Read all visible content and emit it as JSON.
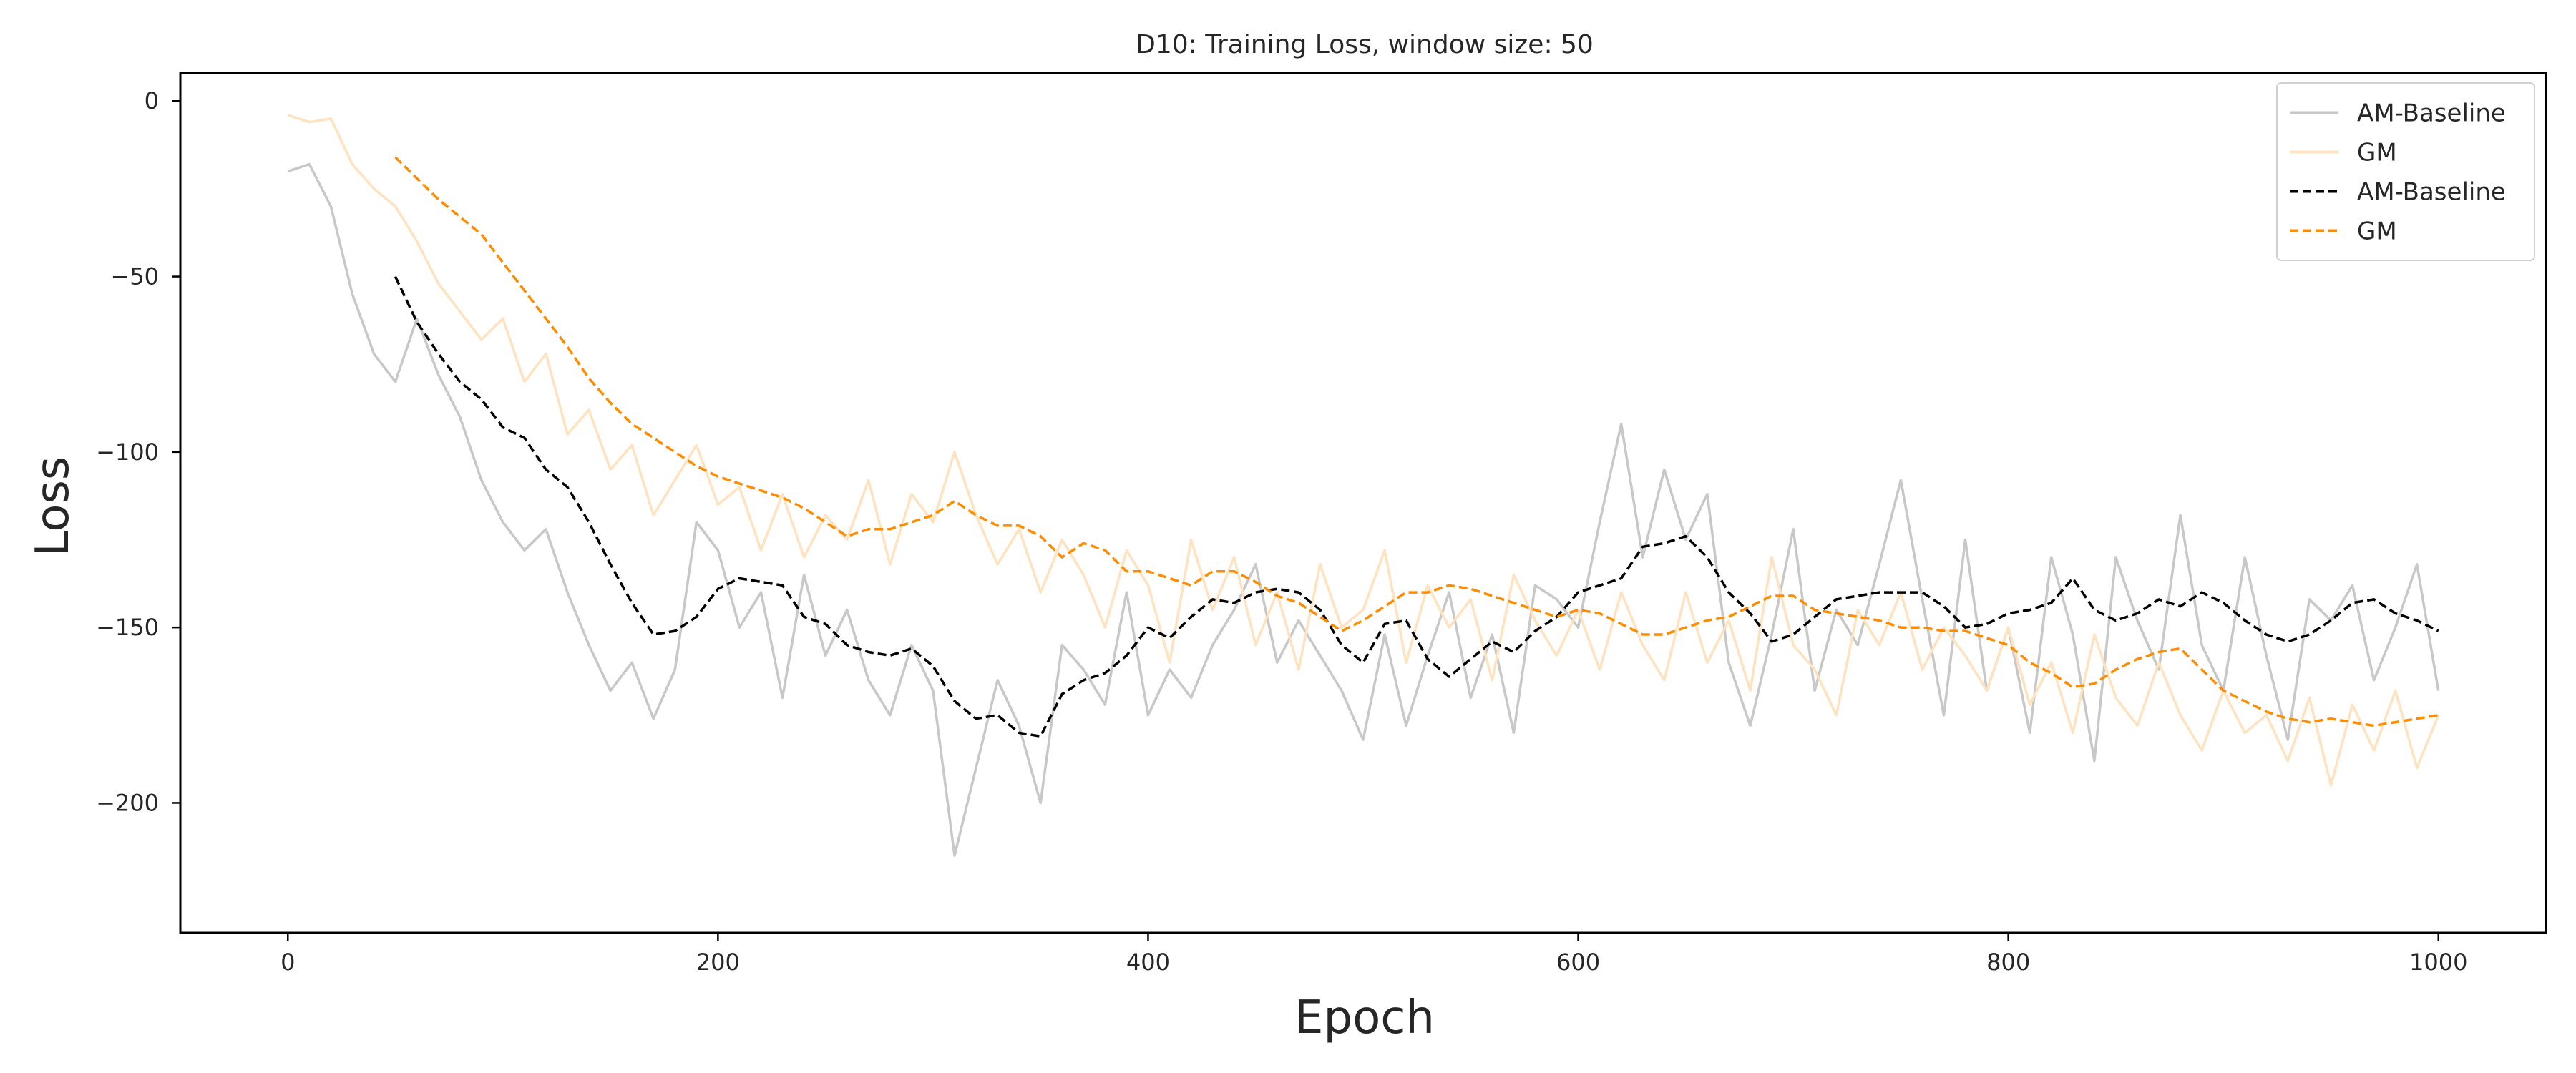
{
  "chart_data": {
    "type": "line",
    "title": "D10: Training Loss, window size: 50",
    "xlabel": "Epoch",
    "ylabel": "Loss",
    "xlim": [
      -50,
      1050
    ],
    "ylim": [
      -237,
      8
    ],
    "xticks": [
      0,
      200,
      400,
      600,
      800,
      1000
    ],
    "yticks": [
      0,
      -50,
      -100,
      -150,
      -200
    ],
    "xtick_labels": [
      "0",
      "200",
      "400",
      "600",
      "800",
      "1000"
    ],
    "ytick_labels": [
      "0",
      "−50",
      "−100",
      "−150",
      "−200"
    ],
    "grid": false,
    "legend_position": "top-right",
    "raw_series": [
      {
        "name": "AM-Baseline",
        "color": "#c8c8c8",
        "style": "solid",
        "x": [
          0,
          10,
          20,
          30,
          40,
          50,
          60,
          70,
          80,
          90,
          100,
          110,
          120,
          130,
          140,
          150,
          160,
          170,
          180,
          190,
          200,
          210,
          220,
          230,
          240,
          250,
          260,
          270,
          280,
          290,
          300,
          310,
          320,
          330,
          340,
          350,
          360,
          370,
          380,
          390,
          400,
          410,
          420,
          430,
          440,
          450,
          460,
          470,
          480,
          490,
          500,
          510,
          520,
          530,
          540,
          550,
          560,
          570,
          580,
          590,
          600,
          610,
          620,
          630,
          640,
          650,
          660,
          670,
          680,
          690,
          700,
          710,
          720,
          730,
          740,
          750,
          760,
          770,
          780,
          790,
          800,
          810,
          820,
          830,
          840,
          850,
          860,
          870,
          880,
          890,
          900,
          910,
          920,
          930,
          940,
          950,
          960,
          970,
          980,
          990,
          1000
        ],
        "y": [
          -20,
          -18,
          -30,
          -55,
          -72,
          -80,
          -62,
          -78,
          -90,
          -108,
          -120,
          -128,
          -122,
          -140,
          -155,
          -168,
          -160,
          -176,
          -162,
          -120,
          -128,
          -150,
          -140,
          -170,
          -135,
          -158,
          -145,
          -165,
          -175,
          -155,
          -168,
          -215,
          -190,
          -165,
          -178,
          -200,
          -155,
          -162,
          -172,
          -140,
          -175,
          -162,
          -170,
          -155,
          -145,
          -132,
          -160,
          -148,
          -158,
          -168,
          -182,
          -152,
          -178,
          -158,
          -140,
          -170,
          -152,
          -180,
          -138,
          -142,
          -150,
          -120,
          -92,
          -130,
          -105,
          -125,
          -112,
          -160,
          -178,
          -152,
          -122,
          -168,
          -145,
          -155,
          -132,
          -108,
          -142,
          -175,
          -125,
          -168,
          -150,
          -180,
          -130,
          -152,
          -188,
          -130,
          -148,
          -162,
          -118,
          -155,
          -168,
          -130,
          -158,
          -182,
          -142,
          -148,
          -138,
          -165,
          -150,
          -132,
          -168
        ]
      },
      {
        "name": "GM",
        "color": "#ffe2bf",
        "style": "solid",
        "x": [
          0,
          10,
          20,
          30,
          40,
          50,
          60,
          70,
          80,
          90,
          100,
          110,
          120,
          130,
          140,
          150,
          160,
          170,
          180,
          190,
          200,
          210,
          220,
          230,
          240,
          250,
          260,
          270,
          280,
          290,
          300,
          310,
          320,
          330,
          340,
          350,
          360,
          370,
          380,
          390,
          400,
          410,
          420,
          430,
          440,
          450,
          460,
          470,
          480,
          490,
          500,
          510,
          520,
          530,
          540,
          550,
          560,
          570,
          580,
          590,
          600,
          610,
          620,
          630,
          640,
          650,
          660,
          670,
          680,
          690,
          700,
          710,
          720,
          730,
          740,
          750,
          760,
          770,
          780,
          790,
          800,
          810,
          820,
          830,
          840,
          850,
          860,
          870,
          880,
          890,
          900,
          910,
          920,
          930,
          940,
          950,
          960,
          970,
          980,
          990,
          1000
        ],
        "y": [
          -4,
          -6,
          -5,
          -18,
          -25,
          -30,
          -40,
          -52,
          -60,
          -68,
          -62,
          -80,
          -72,
          -95,
          -88,
          -105,
          -98,
          -118,
          -108,
          -98,
          -115,
          -110,
          -128,
          -112,
          -130,
          -118,
          -125,
          -108,
          -132,
          -112,
          -120,
          -100,
          -118,
          -132,
          -122,
          -140,
          -125,
          -135,
          -150,
          -128,
          -138,
          -160,
          -125,
          -145,
          -130,
          -155,
          -140,
          -162,
          -132,
          -150,
          -145,
          -128,
          -160,
          -138,
          -150,
          -142,
          -165,
          -135,
          -148,
          -158,
          -145,
          -162,
          -140,
          -155,
          -165,
          -140,
          -160,
          -148,
          -168,
          -130,
          -155,
          -162,
          -175,
          -145,
          -155,
          -140,
          -162,
          -150,
          -158,
          -168,
          -150,
          -172,
          -160,
          -180,
          -152,
          -170,
          -178,
          -160,
          -175,
          -185,
          -168,
          -180,
          -175,
          -188,
          -170,
          -195,
          -172,
          -185,
          -168,
          -190,
          -175
        ]
      }
    ],
    "series": [
      {
        "name": "AM-Baseline",
        "color": "#000000",
        "style": "dashed",
        "x": [
          50,
          60,
          70,
          80,
          90,
          100,
          110,
          120,
          130,
          140,
          150,
          160,
          170,
          180,
          190,
          200,
          210,
          220,
          230,
          240,
          250,
          260,
          270,
          280,
          290,
          300,
          310,
          320,
          330,
          340,
          350,
          360,
          370,
          380,
          390,
          400,
          410,
          420,
          430,
          440,
          450,
          460,
          470,
          480,
          490,
          500,
          510,
          520,
          530,
          540,
          550,
          560,
          570,
          580,
          590,
          600,
          610,
          620,
          630,
          640,
          650,
          660,
          670,
          680,
          690,
          700,
          710,
          720,
          730,
          740,
          750,
          760,
          770,
          780,
          790,
          800,
          810,
          820,
          830,
          840,
          850,
          860,
          870,
          880,
          890,
          900,
          910,
          920,
          930,
          940,
          950,
          960,
          970,
          980,
          990,
          1000
        ],
        "y": [
          -50,
          -63,
          -72,
          -80,
          -85,
          -93,
          -96,
          -105,
          -110,
          -120,
          -132,
          -143,
          -152,
          -151,
          -147,
          -139,
          -136,
          -137,
          -138,
          -147,
          -149,
          -155,
          -157,
          -158,
          -156,
          -161,
          -171,
          -176,
          -175,
          -180,
          -181,
          -169,
          -165,
          -163,
          -158,
          -150,
          -153,
          -147,
          -142,
          -143,
          -140,
          -139,
          -140,
          -145,
          -155,
          -160,
          -149,
          -148,
          -159,
          -164,
          -159,
          -154,
          -157,
          -151,
          -147,
          -140,
          -138,
          -136,
          -127,
          -126,
          -124,
          -130,
          -140,
          -146,
          -154,
          -152,
          -147,
          -142,
          -141,
          -140,
          -140,
          -140,
          -144,
          -150,
          -149,
          -146,
          -145,
          -143,
          -136,
          -145,
          -148,
          -146,
          -142,
          -144,
          -140,
          -143,
          -148,
          -152,
          -154,
          -152,
          -148,
          -143,
          -142,
          -146,
          -148,
          -151
        ]
      },
      {
        "name": "GM",
        "color": "#ff8c00",
        "style": "dashed",
        "x": [
          50,
          60,
          70,
          80,
          90,
          100,
          110,
          120,
          130,
          140,
          150,
          160,
          170,
          180,
          190,
          200,
          210,
          220,
          230,
          240,
          250,
          260,
          270,
          280,
          290,
          300,
          310,
          320,
          330,
          340,
          350,
          360,
          370,
          380,
          390,
          400,
          410,
          420,
          430,
          440,
          450,
          460,
          470,
          480,
          490,
          500,
          510,
          520,
          530,
          540,
          550,
          560,
          570,
          580,
          590,
          600,
          610,
          620,
          630,
          640,
          650,
          660,
          670,
          680,
          690,
          700,
          710,
          720,
          730,
          740,
          750,
          760,
          770,
          780,
          790,
          800,
          810,
          820,
          830,
          840,
          850,
          860,
          870,
          880,
          890,
          900,
          910,
          920,
          930,
          940,
          950,
          960,
          970,
          980,
          990,
          1000
        ],
        "y": [
          -16,
          -22,
          -28,
          -33,
          -38,
          -46,
          -54,
          -62,
          -70,
          -79,
          -86,
          -92,
          -96,
          -100,
          -104,
          -107,
          -109,
          -111,
          -113,
          -116,
          -120,
          -124,
          -122,
          -122,
          -120,
          -118,
          -114,
          -118,
          -121,
          -121,
          -124,
          -130,
          -126,
          -128,
          -134,
          -134,
          -136,
          -138,
          -134,
          -134,
          -137,
          -141,
          -143,
          -147,
          -151,
          -148,
          -144,
          -140,
          -140,
          -138,
          -139,
          -141,
          -143,
          -145,
          -147,
          -145,
          -146,
          -149,
          -152,
          -152,
          -150,
          -148,
          -147,
          -144,
          -141,
          -141,
          -145,
          -146,
          -147,
          -148,
          -150,
          -150,
          -151,
          -151,
          -153,
          -155,
          -160,
          -163,
          -167,
          -166,
          -162,
          -159,
          -157,
          -156,
          -162,
          -168,
          -171,
          -174,
          -176,
          -177,
          -176,
          -177,
          -178,
          -177,
          -176,
          -175
        ]
      }
    ],
    "legend": [
      {
        "label": "AM-Baseline",
        "color": "#c8c8c8",
        "style": "solid"
      },
      {
        "label": "GM",
        "color": "#ffe2bf",
        "style": "solid"
      },
      {
        "label": "AM-Baseline",
        "color": "#000000",
        "style": "dashed"
      },
      {
        "label": "GM",
        "color": "#ff8c00",
        "style": "dashed"
      }
    ]
  }
}
